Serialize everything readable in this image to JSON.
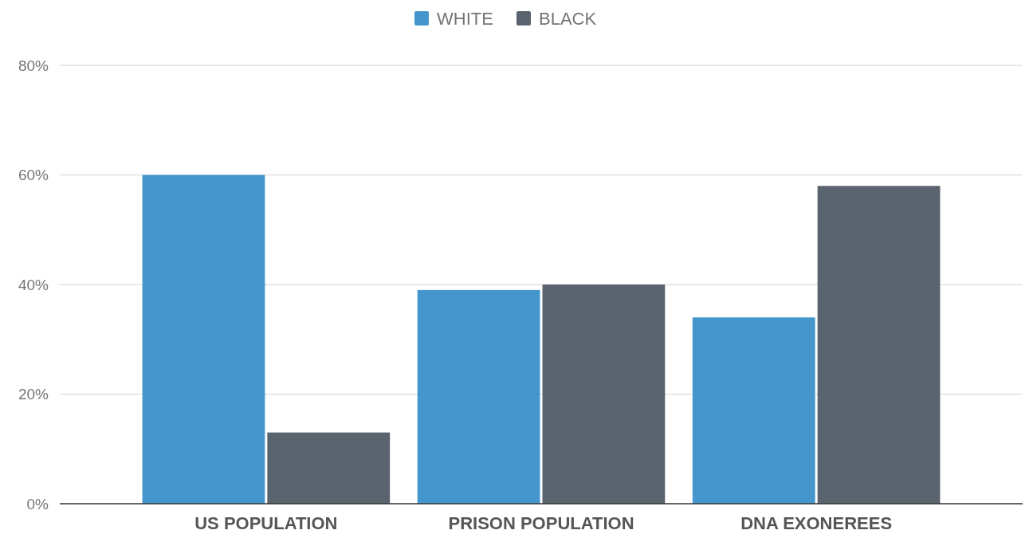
{
  "chart_data": {
    "type": "bar",
    "categories": [
      "US POPULATION",
      "PRISON POPULATION",
      "DNA EXONEREES"
    ],
    "series": [
      {
        "name": "WHITE",
        "color": "#4596cd",
        "values": [
          60,
          39,
          34
        ]
      },
      {
        "name": "BLACK",
        "color": "#5a646e",
        "values": [
          13,
          40,
          58
        ]
      }
    ],
    "ylim": [
      0,
      80
    ],
    "yticks": [
      {
        "value": 0,
        "label": "0%"
      },
      {
        "value": 20,
        "label": "20%"
      },
      {
        "value": 40,
        "label": "40%"
      },
      {
        "value": 60,
        "label": "60%"
      },
      {
        "value": 80,
        "label": "80%"
      }
    ],
    "grid": "y",
    "legend": "top"
  }
}
